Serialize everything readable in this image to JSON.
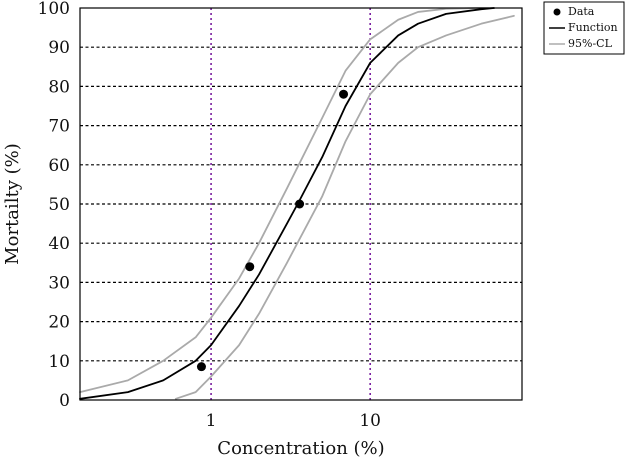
{
  "chart_data": {
    "type": "scatter",
    "xlabel": "Concentration (%)",
    "ylabel": "Mortailty (%)",
    "xscale": "log",
    "xlim": [
      0.15,
      90
    ],
    "ylim": [
      0,
      100
    ],
    "x_ticks": [
      1,
      10
    ],
    "x_tick_labels": [
      "1",
      "10"
    ],
    "y_ticks": [
      0,
      10,
      20,
      30,
      40,
      50,
      60,
      70,
      80,
      90,
      100
    ],
    "y_tick_labels": [
      "0",
      "10",
      "20",
      "30",
      "40",
      "50",
      "60",
      "70",
      "80",
      "90",
      "100"
    ],
    "grid": "horizontal dotted",
    "vertical_reference_lines": [
      1,
      10
    ],
    "legend_position": "outside-top-right",
    "colors": {
      "data": "#000000",
      "function": "#000000",
      "ci": "#aaaaaa",
      "grid": "#000000",
      "reference": "#7a1fa0"
    },
    "legend": [
      "Data",
      "Function",
      "95%-CL"
    ],
    "series": [
      {
        "name": "Data",
        "kind": "points",
        "x": [
          0.87,
          1.75,
          3.6,
          6.8
        ],
        "y": [
          8.5,
          34,
          50,
          78
        ]
      },
      {
        "name": "Function",
        "kind": "line",
        "x": [
          0.15,
          0.3,
          0.5,
          0.8,
          1.0,
          1.5,
          2.0,
          3.0,
          3.5,
          5.0,
          7.0,
          10,
          15,
          20,
          30,
          50,
          60
        ],
        "y": [
          0.3,
          2,
          5,
          10,
          14,
          24,
          32,
          45,
          50,
          62,
          75,
          86,
          93,
          96,
          98.5,
          99.7,
          100
        ]
      },
      {
        "name": "95%-CL",
        "kind": "line",
        "x": [
          0.15,
          0.3,
          0.5,
          0.8,
          1.0,
          1.5,
          2.0,
          3.0,
          5.0,
          7.0,
          10,
          15,
          20,
          30,
          50,
          60
        ],
        "y": [
          2,
          5,
          10,
          16,
          21,
          31,
          40,
          54,
          72,
          84,
          92,
          97,
          99,
          99.8,
          100,
          100
        ]
      },
      {
        "name": "95%-CL",
        "kind": "line",
        "x": [
          0.6,
          0.8,
          1.0,
          1.5,
          2.0,
          3.0,
          5.0,
          7.0,
          10,
          15,
          20,
          30,
          50,
          80
        ],
        "y": [
          0.3,
          2,
          6,
          14,
          22,
          35,
          52,
          66,
          78,
          86,
          90,
          93,
          96,
          98
        ]
      }
    ]
  }
}
